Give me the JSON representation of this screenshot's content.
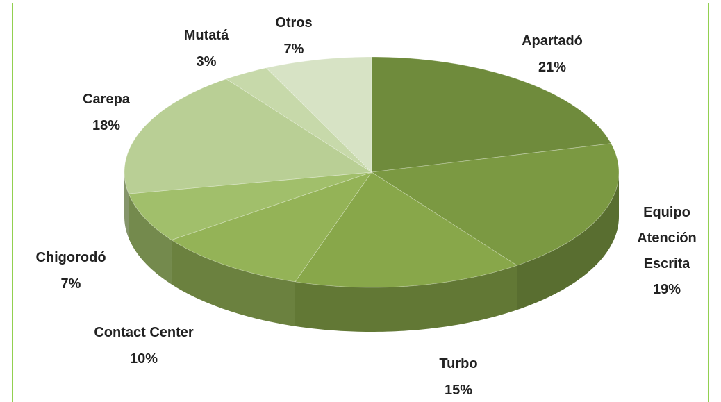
{
  "chart_data": {
    "type": "pie",
    "categories": [
      "Apartadó",
      "Equipo Atención Escrita",
      "Turbo",
      "Contact Center",
      "Chigorodó",
      "Carepa",
      "Mutatá",
      "Otros"
    ],
    "values": [
      21,
      19,
      15,
      10,
      7,
      18,
      3,
      7
    ],
    "value_labels": [
      "21%",
      "19%",
      "15%",
      "10%",
      "7%",
      "18%",
      "3%",
      "7%"
    ],
    "colors": [
      "#6f8b3c",
      "#7b9942",
      "#88a74a",
      "#94b357",
      "#a1bf6b",
      "#b9cf95",
      "#c7d9aa",
      "#d7e3c5"
    ]
  }
}
